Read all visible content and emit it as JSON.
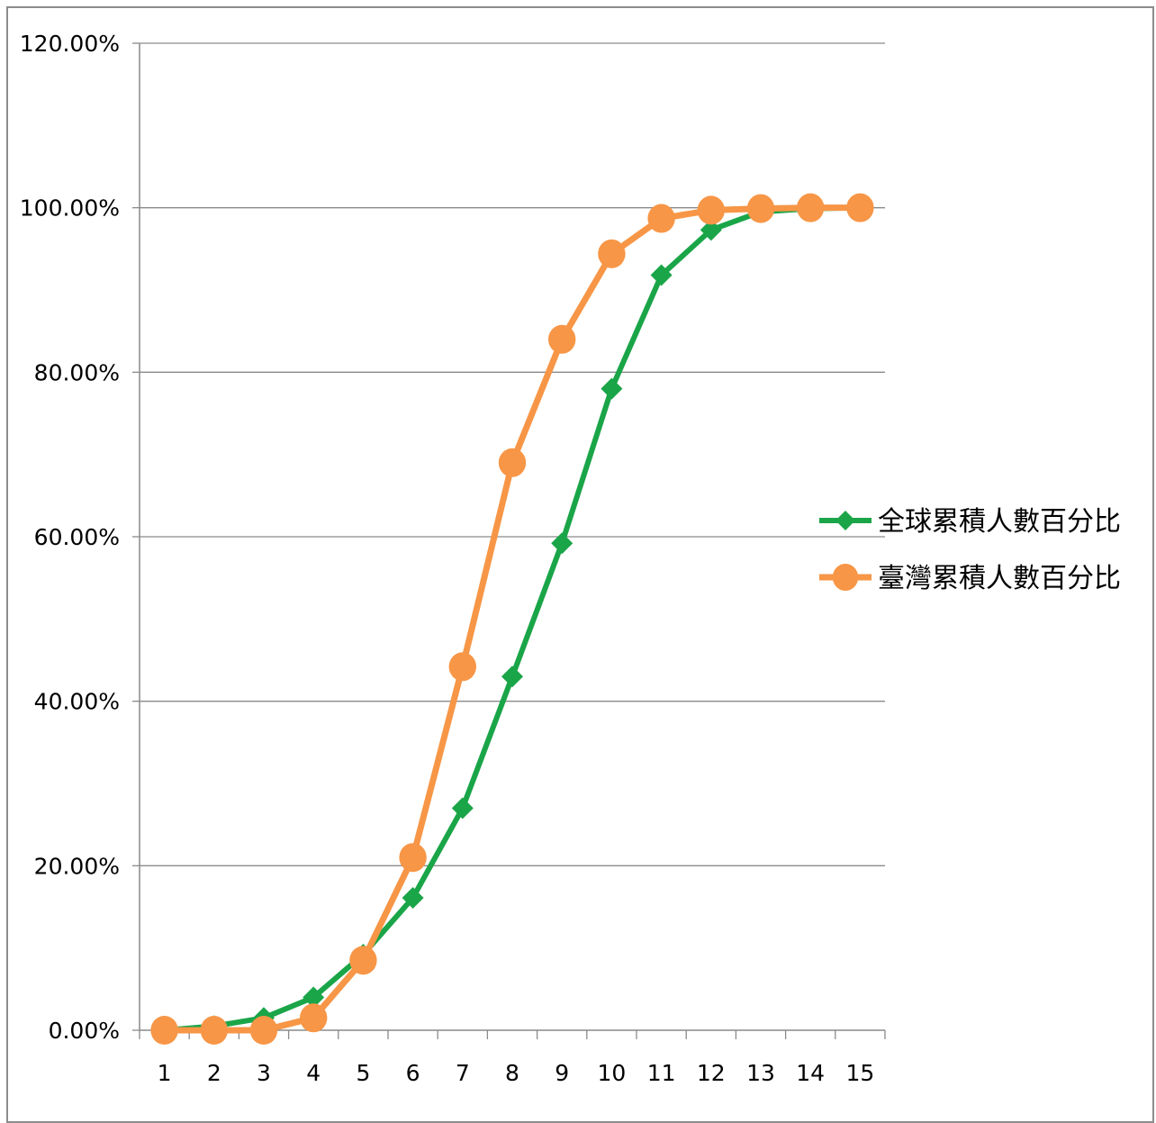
{
  "chart_data": {
    "type": "line",
    "x": [
      1,
      2,
      3,
      4,
      5,
      6,
      7,
      8,
      9,
      10,
      11,
      12,
      13,
      14,
      15
    ],
    "ylim": [
      0,
      1.2
    ],
    "y_ticks": [
      "0.00%",
      "20.00%",
      "40.00%",
      "60.00%",
      "80.00%",
      "100.00%",
      "120.00%"
    ],
    "y_tick_values": [
      0,
      0.2,
      0.4,
      0.6,
      0.8,
      1.0,
      1.2
    ],
    "grid": "horizontal",
    "legend_position": "right",
    "series": [
      {
        "name": "全球累積人數百分比",
        "color": "#1aa548",
        "marker": "diamond",
        "values": [
          0.0,
          0.005,
          0.015,
          0.04,
          0.092,
          0.161,
          0.27,
          0.43,
          0.592,
          0.78,
          0.918,
          0.973,
          0.995,
          0.999,
          1.0
        ]
      },
      {
        "name": "臺灣累積人數百分比",
        "color": "#f79646",
        "marker": "circle",
        "values": [
          0.0,
          0.0,
          0.0,
          0.015,
          0.085,
          0.21,
          0.442,
          0.69,
          0.84,
          0.944,
          0.987,
          0.997,
          0.999,
          1.0,
          1.0
        ]
      }
    ]
  }
}
